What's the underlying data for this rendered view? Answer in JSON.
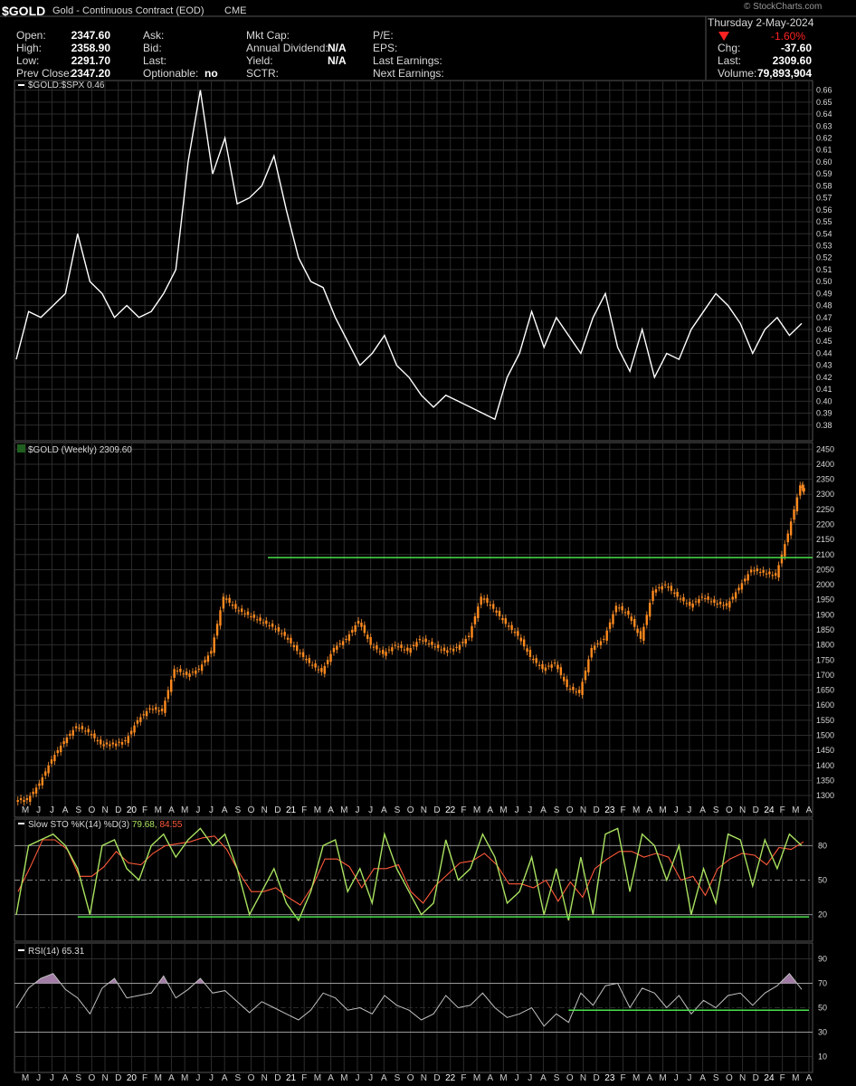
{
  "header": {
    "symbol": "$GOLD",
    "name": "Gold - Continuous Contract (EOD)",
    "exchange": "CME",
    "copyright": "© StockCharts.com",
    "date": "Thursday  2-May-2024",
    "pct_change": "-1.60%",
    "fields": [
      {
        "label": "Open:",
        "value": "2347.60"
      },
      {
        "label": "High:",
        "value": "2358.90"
      },
      {
        "label": "Low:",
        "value": "2291.70"
      },
      {
        "label": "Prev Close:",
        "value": "2347.20"
      }
    ],
    "fields2": [
      {
        "label": "Ask:",
        "value": ""
      },
      {
        "label": "Bid:",
        "value": ""
      },
      {
        "label": "Last:",
        "value": ""
      },
      {
        "label": "Optionable:",
        "value": "no"
      }
    ],
    "fields3": [
      {
        "label": "Mkt Cap:",
        "value": ""
      },
      {
        "label": "Annual Dividend:",
        "value": "N/A"
      },
      {
        "label": "Yield:",
        "value": "N/A"
      },
      {
        "label": "SCTR:",
        "value": ""
      }
    ],
    "fields4": [
      {
        "label": "P/E:",
        "value": ""
      },
      {
        "label": "EPS:",
        "value": ""
      },
      {
        "label": "Last Earnings:",
        "value": ""
      },
      {
        "label": "Next Earnings:",
        "value": ""
      }
    ],
    "right": [
      {
        "label": "Chg:",
        "value": "-37.60"
      },
      {
        "label": "Last:",
        "value": "2309.60"
      },
      {
        "label": "Volume:",
        "value": "79,893,904"
      }
    ]
  },
  "colors": {
    "background": "#000000",
    "grid": "#2c2c2c",
    "ratio_line": "#ffffff",
    "candle": "#ff8a1e",
    "wick": "#d27a2a",
    "k_line": "#a9e25f",
    "d_line": "#ff5a3a",
    "support": "#4be04b",
    "rsi_line": "#c0c0c0",
    "rsi_fill": "#b28ab6",
    "neg": "#ff2222"
  },
  "x_labels": [
    "M",
    "J",
    "J",
    "A",
    "S",
    "O",
    "N",
    "D",
    "20",
    "F",
    "M",
    "A",
    "M",
    "J",
    "J",
    "A",
    "S",
    "O",
    "N",
    "D",
    "21",
    "F",
    "M",
    "A",
    "M",
    "J",
    "J",
    "A",
    "S",
    "O",
    "N",
    "D",
    "22",
    "F",
    "M",
    "A",
    "M",
    "J",
    "J",
    "A",
    "S",
    "O",
    "N",
    "D",
    "23",
    "F",
    "M",
    "A",
    "M",
    "J",
    "J",
    "A",
    "S",
    "O",
    "N",
    "D",
    "24",
    "F",
    "M",
    "A"
  ],
  "chart_data": [
    {
      "type": "line",
      "title": "$GOLD:$SPX 0.46",
      "ylim": [
        0.37,
        0.665
      ],
      "yticks": [
        "0.38",
        "0.39",
        "0.40",
        "0.41",
        "0.42",
        "0.43",
        "0.44",
        "0.45",
        "0.46",
        "0.47",
        "0.48",
        "0.49",
        "0.50",
        "0.51",
        "0.52",
        "0.53",
        "0.54",
        "0.55",
        "0.56",
        "0.57",
        "0.58",
        "0.59",
        "0.60",
        "0.61",
        "0.62",
        "0.63",
        "0.64",
        "0.65",
        "0.66"
      ],
      "x": [
        0,
        4,
        8,
        12,
        16,
        20,
        24,
        28,
        32,
        36,
        40,
        44,
        48,
        52,
        56,
        60,
        64,
        68,
        72,
        76,
        80,
        84,
        88,
        92,
        96,
        100,
        104,
        108,
        112,
        116,
        120,
        124,
        128,
        132,
        136,
        140,
        144,
        148,
        152,
        156,
        160,
        164,
        168,
        172,
        176,
        180,
        184,
        188,
        192,
        196,
        200,
        204,
        208,
        212,
        216,
        220,
        224,
        228,
        232,
        236,
        240,
        244,
        248,
        252,
        256
      ],
      "values": [
        0.435,
        0.475,
        0.47,
        0.48,
        0.49,
        0.54,
        0.5,
        0.49,
        0.47,
        0.48,
        0.47,
        0.475,
        0.49,
        0.51,
        0.6,
        0.66,
        0.59,
        0.62,
        0.565,
        0.57,
        0.58,
        0.605,
        0.56,
        0.52,
        0.5,
        0.495,
        0.47,
        0.45,
        0.43,
        0.44,
        0.455,
        0.43,
        0.42,
        0.405,
        0.395,
        0.405,
        0.4,
        0.395,
        0.39,
        0.385,
        0.42,
        0.44,
        0.475,
        0.445,
        0.47,
        0.455,
        0.44,
        0.47,
        0.49,
        0.445,
        0.425,
        0.46,
        0.42,
        0.44,
        0.435,
        0.46,
        0.475,
        0.49,
        0.48,
        0.465,
        0.44,
        0.46,
        0.47,
        0.455,
        0.465
      ]
    },
    {
      "type": "candlestick",
      "title": "$GOLD (Weekly) 2309.60",
      "ylim": [
        1240,
        2460
      ],
      "yticks": [
        "1300",
        "1350",
        "1400",
        "1450",
        "1500",
        "1550",
        "1600",
        "1650",
        "1700",
        "1750",
        "1800",
        "1850",
        "1900",
        "1950",
        "2000",
        "2050",
        "2100",
        "2150",
        "2200",
        "2250",
        "2300",
        "2350",
        "2400",
        "2450"
      ],
      "support_level": 2090,
      "support_start_x": 82,
      "x": [
        0,
        4,
        8,
        12,
        16,
        20,
        24,
        28,
        32,
        36,
        40,
        44,
        48,
        52,
        56,
        60,
        64,
        68,
        72,
        76,
        80,
        84,
        88,
        92,
        96,
        100,
        104,
        108,
        112,
        116,
        120,
        124,
        128,
        132,
        136,
        140,
        144,
        148,
        152,
        156,
        160,
        164,
        168,
        172,
        176,
        180,
        184,
        188,
        192,
        196,
        200,
        204,
        208,
        212,
        216,
        220,
        224,
        228,
        232,
        236,
        240,
        244,
        248,
        252,
        256
      ],
      "values": [
        1285,
        1340,
        1420,
        1480,
        1530,
        1510,
        1470,
        1470,
        1480,
        1550,
        1590,
        1580,
        1720,
        1700,
        1720,
        1780,
        1960,
        1920,
        1900,
        1880,
        1860,
        1830,
        1780,
        1740,
        1710,
        1790,
        1820,
        1880,
        1800,
        1770,
        1800,
        1780,
        1820,
        1800,
        1780,
        1790,
        1830,
        1960,
        1920,
        1870,
        1830,
        1760,
        1720,
        1740,
        1660,
        1640,
        1790,
        1820,
        1930,
        1900,
        1820,
        1980,
        2000,
        1960,
        1930,
        1960,
        1940,
        1930,
        1990,
        2050,
        2040,
        2030,
        2170,
        2330,
        2310
      ]
    },
    {
      "type": "line",
      "title": "Slow STO %K(14) %D(3)",
      "k_value": "79.68",
      "d_value": "84.55",
      "ylim": [
        0,
        100
      ],
      "yticks": [
        "20",
        "50",
        "80"
      ],
      "x": [
        0,
        4,
        8,
        12,
        16,
        20,
        24,
        28,
        32,
        36,
        40,
        44,
        48,
        52,
        56,
        60,
        64,
        68,
        72,
        76,
        80,
        84,
        88,
        92,
        96,
        100,
        104,
        108,
        112,
        116,
        120,
        124,
        128,
        132,
        136,
        140,
        144,
        148,
        152,
        156,
        160,
        164,
        168,
        172,
        176,
        180,
        184,
        188,
        192,
        196,
        200,
        204,
        208,
        212,
        216,
        220,
        224,
        228,
        232,
        236,
        240,
        244,
        248,
        252,
        256
      ],
      "values": [
        20,
        80,
        85,
        90,
        80,
        60,
        20,
        80,
        85,
        60,
        50,
        80,
        90,
        70,
        85,
        95,
        80,
        90,
        60,
        20,
        40,
        60,
        30,
        15,
        40,
        80,
        85,
        40,
        60,
        30,
        90,
        60,
        40,
        20,
        30,
        85,
        50,
        60,
        90,
        70,
        30,
        40,
        70,
        20,
        60,
        15,
        70,
        20,
        90,
        95,
        40,
        90,
        80,
        50,
        80,
        20,
        60,
        30,
        90,
        85,
        45,
        85,
        60,
        90,
        80
      ]
    },
    {
      "type": "area",
      "title": "RSI(14) 65.31",
      "ylim": [
        0,
        100
      ],
      "yticks": [
        "10",
        "30",
        "50",
        "70",
        "90"
      ],
      "support_level": 48,
      "support_start_x": 180,
      "x": [
        0,
        4,
        8,
        12,
        16,
        20,
        24,
        28,
        32,
        36,
        40,
        44,
        48,
        52,
        56,
        60,
        64,
        68,
        72,
        76,
        80,
        84,
        88,
        92,
        96,
        100,
        104,
        108,
        112,
        116,
        120,
        124,
        128,
        132,
        136,
        140,
        144,
        148,
        152,
        156,
        160,
        164,
        168,
        172,
        176,
        180,
        184,
        188,
        192,
        196,
        200,
        204,
        208,
        212,
        216,
        220,
        224,
        228,
        232,
        236,
        240,
        244,
        248,
        252,
        256
      ],
      "values": [
        50,
        66,
        74,
        78,
        65,
        58,
        45,
        66,
        74,
        58,
        60,
        62,
        76,
        58,
        65,
        74,
        62,
        64,
        55,
        46,
        55,
        50,
        45,
        40,
        48,
        62,
        58,
        48,
        50,
        45,
        60,
        52,
        48,
        40,
        45,
        60,
        50,
        52,
        62,
        50,
        42,
        45,
        50,
        35,
        45,
        38,
        62,
        52,
        68,
        70,
        50,
        66,
        62,
        50,
        60,
        45,
        56,
        50,
        60,
        62,
        52,
        62,
        68,
        78,
        65
      ]
    }
  ]
}
